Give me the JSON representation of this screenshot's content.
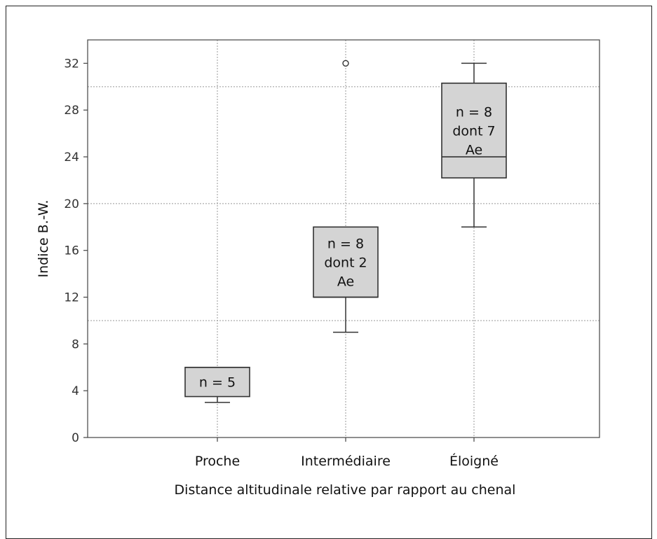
{
  "chart_data": {
    "type": "box",
    "xlabel": "Distance altitudinale relative par rapport au chenal",
    "ylabel": "Indice B.-W.",
    "ylim": [
      0,
      34
    ],
    "yticks": [
      0,
      4,
      8,
      12,
      16,
      20,
      24,
      28,
      32
    ],
    "y_gridlines": [
      10,
      20,
      30
    ],
    "x_gridlines": true,
    "categories": [
      "Proche",
      "Intermédiaire",
      "Éloigné"
    ],
    "boxes": [
      {
        "category": "Proche",
        "whisker_low": 3,
        "q1": 3.5,
        "median": 6,
        "q3": 6,
        "whisker_high": 6,
        "outliers": [],
        "annotation": [
          "n = 5"
        ]
      },
      {
        "category": "Intermédiaire",
        "whisker_low": 9,
        "q1": 12,
        "median": 12,
        "q3": 18,
        "whisker_high": 18,
        "outliers": [
          32
        ],
        "annotation": [
          "n = 8",
          "dont 2",
          "Ae"
        ]
      },
      {
        "category": "Éloigné",
        "whisker_low": 18,
        "q1": 22.2,
        "median": 24,
        "q3": 30.3,
        "whisker_high": 32,
        "outliers": [],
        "annotation": [
          "n = 8",
          "dont 7",
          "Ae"
        ]
      }
    ],
    "colors": {
      "box_fill": "#d4d4d4",
      "stroke": "#333333",
      "grid": "#999999"
    }
  }
}
